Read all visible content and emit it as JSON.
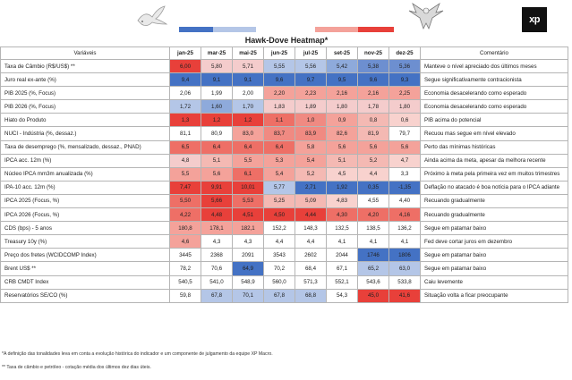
{
  "title": "Hawk-Dove Heatmap*",
  "logo_text": "xp",
  "colors": {
    "dove_strong": "#4472c4",
    "dove_light": "#b4c6e7",
    "hawk_light": "#f4a29a",
    "hawk_strong": "#e8403a"
  },
  "headers": {
    "variable": "Variáveis",
    "months": [
      "jan-25",
      "mar-25",
      "mai-25",
      "jun-25",
      "jul-25",
      "set-25",
      "nov-25",
      "dez-25"
    ],
    "comment": "Comentário"
  },
  "rows": [
    {
      "label": "Taxa de Câmbio (R$/US$) **",
      "values": [
        "6,00",
        "5,80",
        "5,71",
        "5,55",
        "5,56",
        "5,42",
        "5,38",
        "5,36"
      ],
      "colors": [
        "#e8403a",
        "#f4cccc",
        "#f4cccc",
        "#b4c6e7",
        "#b4c6e7",
        "#8eaadb",
        "#6d8fd0",
        "#6d8fd0"
      ],
      "comment": "Manteve o nível apreciado dos últimos meses"
    },
    {
      "label": "Juro real ex-ante (%)",
      "values": [
        "9,4",
        "9,1",
        "9,1",
        "9,6",
        "9,7",
        "9,5",
        "9,6",
        "9,3"
      ],
      "colors": [
        "#4472c4",
        "#4472c4",
        "#4472c4",
        "#4472c4",
        "#4472c4",
        "#4472c4",
        "#4472c4",
        "#4472c4"
      ],
      "comment": "Segue significativamente contracionista"
    },
    {
      "label": "PIB 2025 (%, Focus)",
      "values": [
        "2,06",
        "1,99",
        "2,00",
        "2,20",
        "2,23",
        "2,16",
        "2,16",
        "2,25"
      ],
      "colors": [
        "",
        "",
        "",
        "#f4a29a",
        "#f4a29a",
        "#f4a29a",
        "#f4a29a",
        "#f4a29a"
      ],
      "comment": "Economia desacelerando como esperado"
    },
    {
      "label": "PIB 2026 (%, Focus)",
      "values": [
        "1,72",
        "1,60",
        "1,70",
        "1,83",
        "1,89",
        "1,80",
        "1,78",
        "1,80"
      ],
      "colors": [
        "#b4c6e7",
        "#8eaadb",
        "#b4c6e7",
        "#f4cccc",
        "#f4cccc",
        "#f4cccc",
        "#f4cccc",
        "#f4cccc"
      ],
      "comment": "Economia desacelerando como esperado"
    },
    {
      "label": "Hiato do Produto",
      "values": [
        "1,3",
        "1,2",
        "1,2",
        "1,1",
        "1,0",
        "0,9",
        "0,8",
        "0,6"
      ],
      "colors": [
        "#e8403a",
        "#e8403a",
        "#e8403a",
        "#ee6f66",
        "#f08a82",
        "#f4a29a",
        "#f4b9b3",
        "#f8d2ce"
      ],
      "comment": "PIB acima do potencial"
    },
    {
      "label": "NUCI - Indústria (%, dessaz.)",
      "values": [
        "81,1",
        "80,9",
        "83,0",
        "83,7",
        "83,9",
        "82,6",
        "81,9",
        "79,7"
      ],
      "colors": [
        "",
        "",
        "#f4a29a",
        "#f08a82",
        "#f08a82",
        "#f4a29a",
        "#f4b9b3",
        ""
      ],
      "comment": "Recuou mas segue em nível elevado"
    },
    {
      "label": "Taxa de desemprego (%, mensalizado, dessaz., PNAD)",
      "values": [
        "6,5",
        "6,4",
        "6,4",
        "6,4",
        "5,8",
        "5,6",
        "5,6",
        "5,6"
      ],
      "colors": [
        "#ee6f66",
        "#ee6f66",
        "#ee6f66",
        "#ee6f66",
        "#f4a29a",
        "#f4a29a",
        "#f4a29a",
        "#f4a29a"
      ],
      "comment": "Perto das mínimas históricas"
    },
    {
      "label": "IPCA acc. 12m (%)",
      "values": [
        "4,8",
        "5,1",
        "5,5",
        "5,3",
        "5,4",
        "5,1",
        "5,2",
        "4,7"
      ],
      "colors": [
        "#f4cccc",
        "#f4b9b3",
        "#f4a29a",
        "#f4a29a",
        "#f4a29a",
        "#f4b9b3",
        "#f4b9b3",
        "#f8d2ce"
      ],
      "comment": "Ainda acima da meta, apesar da melhora recente"
    },
    {
      "label": "Núcleo IPCA mm3m anualizada (%)",
      "values": [
        "5,5",
        "5,6",
        "6,1",
        "5,4",
        "5,2",
        "4,5",
        "4,4",
        "3,3"
      ],
      "colors": [
        "#f4a29a",
        "#f4a29a",
        "#ee6f66",
        "#f4a29a",
        "#f4b9b3",
        "#f8d2ce",
        "#f8d2ce",
        ""
      ],
      "comment": "Próximo à meta pela primeira vez em muitos trimestres"
    },
    {
      "label": "IPA-10 acc. 12m (%)",
      "values": [
        "7,47",
        "9,91",
        "10,01",
        "5,77",
        "2,71",
        "1,92",
        "0,35",
        "-1,35"
      ],
      "colors": [
        "#e8403a",
        "#e8403a",
        "#e8403a",
        "#b4c6e7",
        "#4472c4",
        "#4472c4",
        "#4472c4",
        "#4472c4"
      ],
      "comment": "Deflação no atacado é boa notícia para o IPCA adiante"
    },
    {
      "label": "IPCA 2025 (Focus, %)",
      "values": [
        "5,50",
        "5,66",
        "5,53",
        "5,25",
        "5,09",
        "4,83",
        "4,55",
        "4,40"
      ],
      "colors": [
        "#ee6f66",
        "#e8403a",
        "#ee6f66",
        "#f4b9b3",
        "#f4b9b3",
        "#f8d2ce",
        "",
        ""
      ],
      "comment": "Recuando gradualmente"
    },
    {
      "label": "IPCA 2026 (Focus, %)",
      "values": [
        "4,22",
        "4,48",
        "4,51",
        "4,50",
        "4,44",
        "4,30",
        "4,20",
        "4,16"
      ],
      "colors": [
        "#ee6f66",
        "#e8403a",
        "#e8403a",
        "#e8403a",
        "#e8403a",
        "#ee6f66",
        "#ee6f66",
        "#ee6f66"
      ],
      "comment": "Recuando gradualmente"
    },
    {
      "label": "CDS (bps) - 5 anos",
      "values": [
        "180,8",
        "178,1",
        "182,1",
        "152,2",
        "148,3",
        "132,5",
        "138,5",
        "136,2"
      ],
      "colors": [
        "#f4a29a",
        "#f4a29a",
        "#f4a29a",
        "",
        "",
        "",
        "",
        ""
      ],
      "comment": "Segue em patamar baixo"
    },
    {
      "label": "Treasury 10y (%)",
      "values": [
        "4,6",
        "4,3",
        "4,3",
        "4,4",
        "4,4",
        "4,1",
        "4,1",
        "4,1"
      ],
      "colors": [
        "#f4a29a",
        "",
        "",
        "",
        "",
        "",
        "",
        ""
      ],
      "comment": "Fed deve cortar juros em dezembro"
    },
    {
      "label": "Preço dos fretes (WCIDCOMP Index)",
      "values": [
        "3445",
        "2368",
        "2091",
        "3543",
        "2602",
        "2044",
        "1746",
        "1806"
      ],
      "colors": [
        "",
        "",
        "",
        "",
        "",
        "",
        "#4472c4",
        "#4472c4"
      ],
      "comment": "Segue em patamar baixo"
    },
    {
      "label": "Brent US$ **",
      "values": [
        "78,2",
        "70,6",
        "64,9",
        "70,2",
        "68,4",
        "67,1",
        "65,2",
        "63,0"
      ],
      "colors": [
        "",
        "",
        "#4472c4",
        "",
        "",
        "",
        "#b4c6e7",
        "#b4c6e7"
      ],
      "comment": "Segue em patamar baixo"
    },
    {
      "label": "CRB CMDT Index",
      "values": [
        "540,5",
        "541,0",
        "548,9",
        "560,0",
        "571,3",
        "552,1",
        "543,6",
        "533,8"
      ],
      "colors": [
        "",
        "",
        "",
        "",
        "",
        "",
        "",
        ""
      ],
      "comment": "Caiu levemente"
    },
    {
      "label": "Reservatórios SE/CO (%)",
      "values": [
        "59,8",
        "67,8",
        "70,1",
        "67,8",
        "68,8",
        "54,3",
        "45,0",
        "41,6"
      ],
      "colors": [
        "",
        "#b4c6e7",
        "#b4c6e7",
        "#b4c6e7",
        "#b4c6e7",
        "",
        "#e8403a",
        "#e8403a"
      ],
      "comment": "Situação volta a ficar preocupante"
    }
  ],
  "notes": [
    "*A definição das tonalidades leva em conta a evolução histórica do indicador e um componente de julgamento da equipe XP Macro.",
    "** Taxa de câmbio e petróleo - cotação média dos últimos dez dias úteis."
  ],
  "chart_data": {
    "type": "heatmap",
    "title": "Hawk-Dove Heatmap*",
    "columns": [
      "jan-25",
      "mar-25",
      "mai-25",
      "jun-25",
      "jul-25",
      "set-25",
      "nov-25",
      "dez-25"
    ],
    "row_labels": [
      "Taxa de Câmbio (R$/US$) **",
      "Juro real ex-ante (%)",
      "PIB 2025 (%, Focus)",
      "PIB 2026 (%, Focus)",
      "Hiato do Produto",
      "NUCI - Indústria (%, dessaz.)",
      "Taxa de desemprego (%, mensalizado, dessaz., PNAD)",
      "IPCA acc. 12m (%)",
      "Núcleo IPCA mm3m anualizada (%)",
      "IPA-10 acc. 12m (%)",
      "IPCA 2025 (Focus, %)",
      "IPCA 2026 (Focus, %)",
      "CDS (bps) - 5 anos",
      "Treasury 10y (%)",
      "Preço dos fretes (WCIDCOMP Index)",
      "Brent US$ **",
      "CRB CMDT Index",
      "Reservatórios SE/CO (%)"
    ]
  }
}
